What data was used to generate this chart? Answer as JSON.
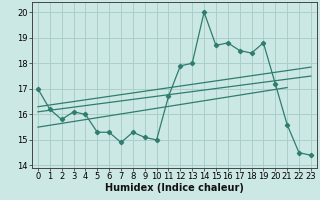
{
  "title": "",
  "xlabel": "Humidex (Indice chaleur)",
  "ylabel": "",
  "x_values": [
    0,
    1,
    2,
    3,
    4,
    5,
    6,
    7,
    8,
    9,
    10,
    11,
    12,
    13,
    14,
    15,
    16,
    17,
    18,
    19,
    20,
    21,
    22,
    23
  ],
  "main_line": [
    17.0,
    16.2,
    15.8,
    16.1,
    16.0,
    15.3,
    15.3,
    14.9,
    15.3,
    15.1,
    15.0,
    16.7,
    17.9,
    18.0,
    20.0,
    18.7,
    18.8,
    18.5,
    18.4,
    18.8,
    17.2,
    15.6,
    14.5,
    14.4
  ],
  "line_color": "#2e7d6e",
  "bg_color": "#cce8e4",
  "grid_color": "#aacfca",
  "tick_label_fontsize": 6.0,
  "xlabel_fontsize": 7.0,
  "ylim": [
    13.9,
    20.4
  ],
  "xlim": [
    -0.5,
    23.5
  ],
  "yticks": [
    14,
    15,
    16,
    17,
    18,
    19,
    20
  ],
  "xticks": [
    0,
    1,
    2,
    3,
    4,
    5,
    6,
    7,
    8,
    9,
    10,
    11,
    12,
    13,
    14,
    15,
    16,
    17,
    18,
    19,
    20,
    21,
    22,
    23
  ],
  "regression_lines": [
    {
      "x_start": 0,
      "x_end": 23,
      "y_start": 16.1,
      "y_end": 17.5
    },
    {
      "x_start": 0,
      "x_end": 23,
      "y_start": 16.3,
      "y_end": 17.85
    },
    {
      "x_start": 0,
      "x_end": 21,
      "y_start": 15.5,
      "y_end": 17.05
    }
  ]
}
